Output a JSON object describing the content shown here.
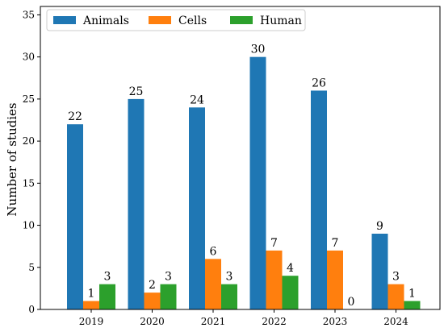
{
  "chart_data": {
    "type": "bar",
    "title": "",
    "xlabel": "",
    "ylabel": "Number of studies",
    "categories": [
      "2019",
      "2020",
      "2021",
      "2022",
      "2023",
      "2024"
    ],
    "series": [
      {
        "name": "Animals",
        "values": [
          22,
          25,
          24,
          30,
          26,
          9
        ],
        "color": "#1f77b4"
      },
      {
        "name": "Cells",
        "values": [
          1,
          2,
          6,
          7,
          7,
          3
        ],
        "color": "#ff7f0e"
      },
      {
        "name": "Human",
        "values": [
          3,
          3,
          3,
          4,
          0,
          1
        ],
        "color": "#2ca02c"
      }
    ],
    "ylim": [
      0,
      36
    ],
    "yticks": [
      "0",
      "5",
      "10",
      "15",
      "20",
      "25",
      "30",
      "35"
    ],
    "grid": false,
    "legend_position": "top-left",
    "data_labels": true
  }
}
